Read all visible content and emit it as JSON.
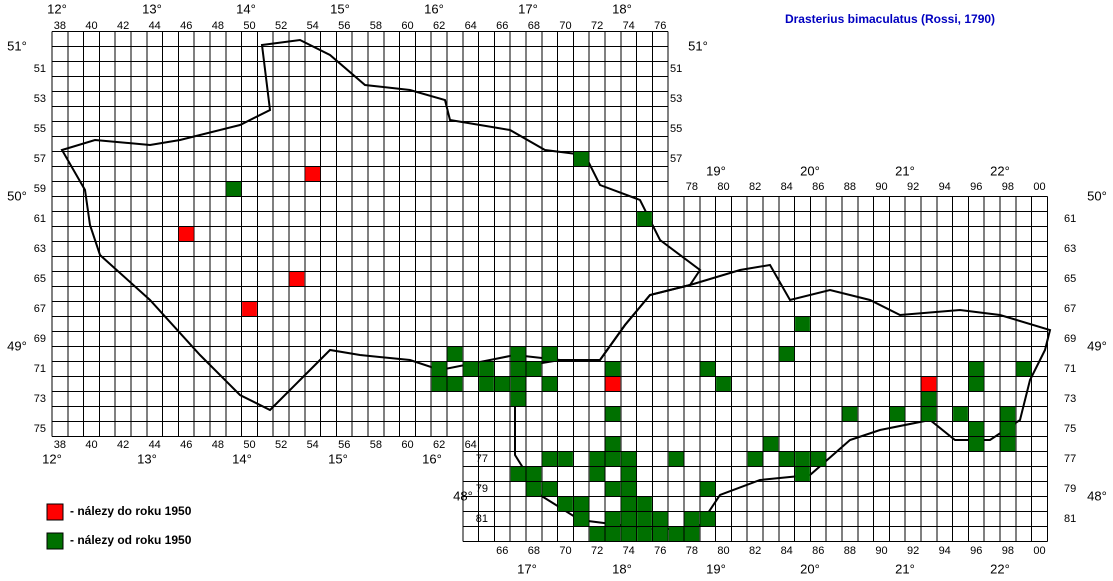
{
  "title": "Drasterius bimaculatus (Rossi, 1790)",
  "top_columns": [
    "38",
    "40",
    "42",
    "44",
    "46",
    "48",
    "50",
    "52",
    "54",
    "56",
    "58",
    "60",
    "62",
    "64",
    "66",
    "68",
    "70",
    "72",
    "74",
    "76"
  ],
  "bottom_columns_west": [
    "38",
    "40",
    "42",
    "44",
    "46",
    "48",
    "50",
    "52",
    "54",
    "56",
    "58",
    "60",
    "62",
    "64"
  ],
  "top_columns_east": [
    "78",
    "80",
    "82",
    "84",
    "86",
    "88",
    "90",
    "92",
    "94",
    "96",
    "98",
    "00"
  ],
  "bottom_columns_east": [
    "66",
    "68",
    "70",
    "72",
    "74",
    "76",
    "78",
    "80",
    "82",
    "84",
    "86",
    "88",
    "90",
    "92",
    "94",
    "96",
    "98",
    "00"
  ],
  "rows_right_west": [
    "51",
    "53",
    "55",
    "57"
  ],
  "rows_left_west": [
    "51",
    "53",
    "55",
    "57",
    "59",
    "61",
    "63",
    "65",
    "67",
    "69",
    "71",
    "73",
    "75"
  ],
  "rows_right_east": [
    "61",
    "63",
    "65",
    "67",
    "69",
    "71",
    "73",
    "75",
    "77",
    "79",
    "81"
  ],
  "rows_left_east": [
    "77",
    "79",
    "81"
  ],
  "longitudes_top": [
    "12°",
    "13°",
    "14°",
    "15°",
    "16°",
    "17°",
    "18°"
  ],
  "longitudes_top_east": [
    "19°",
    "20°",
    "21°",
    "22°"
  ],
  "longitudes_bottom_west": [
    "12°",
    "13°",
    "14°",
    "15°",
    "16°"
  ],
  "longitudes_bottom_east": [
    "17°",
    "18°",
    "19°",
    "20°",
    "21°",
    "22°"
  ],
  "latitudes": [
    "51°",
    "50°",
    "49°",
    "48°"
  ],
  "legend": {
    "before": "- nálezy do roku 1950",
    "since": "- nálezy od roku 1950"
  },
  "records": {
    "before_1950": [
      [
        54,
        58
      ],
      [
        46,
        62
      ],
      [
        53,
        65
      ],
      [
        50,
        67
      ],
      [
        73,
        72
      ],
      [
        93,
        72
      ]
    ],
    "since_1950": [
      [
        49,
        59
      ],
      [
        71,
        57
      ],
      [
        75,
        61
      ],
      [
        85,
        68
      ],
      [
        63,
        70
      ],
      [
        67,
        70
      ],
      [
        69,
        70
      ],
      [
        84,
        70
      ],
      [
        62,
        71
      ],
      [
        64,
        71
      ],
      [
        65,
        71
      ],
      [
        67,
        71
      ],
      [
        68,
        71
      ],
      [
        73,
        71
      ],
      [
        79,
        71
      ],
      [
        96,
        71
      ],
      [
        99,
        71
      ],
      [
        62,
        72
      ],
      [
        63,
        72
      ],
      [
        65,
        72
      ],
      [
        66,
        72
      ],
      [
        67,
        72
      ],
      [
        69,
        72
      ],
      [
        80,
        72
      ],
      [
        96,
        72
      ],
      [
        67,
        73
      ],
      [
        93,
        73
      ],
      [
        73,
        74
      ],
      [
        88,
        74
      ],
      [
        91,
        74
      ],
      [
        93,
        74
      ],
      [
        95,
        74
      ],
      [
        98,
        74
      ],
      [
        96,
        75
      ],
      [
        98,
        75
      ],
      [
        73,
        76
      ],
      [
        83,
        76
      ],
      [
        96,
        76
      ],
      [
        98,
        76
      ],
      [
        69,
        77
      ],
      [
        70,
        77
      ],
      [
        72,
        77
      ],
      [
        73,
        77
      ],
      [
        74,
        77
      ],
      [
        77,
        77
      ],
      [
        82,
        77
      ],
      [
        84,
        77
      ],
      [
        85,
        77
      ],
      [
        86,
        77
      ],
      [
        67,
        78
      ],
      [
        68,
        78
      ],
      [
        72,
        78
      ],
      [
        74,
        78
      ],
      [
        85,
        78
      ],
      [
        68,
        79
      ],
      [
        69,
        79
      ],
      [
        73,
        79
      ],
      [
        74,
        79
      ],
      [
        79,
        79
      ],
      [
        70,
        80
      ],
      [
        71,
        80
      ],
      [
        74,
        80
      ],
      [
        75,
        80
      ],
      [
        71,
        81
      ],
      [
        73,
        81
      ],
      [
        74,
        81
      ],
      [
        75,
        81
      ],
      [
        76,
        81
      ],
      [
        78,
        81
      ],
      [
        79,
        81
      ],
      [
        72,
        82
      ],
      [
        73,
        82
      ],
      [
        74,
        82
      ],
      [
        75,
        82
      ],
      [
        76,
        82
      ],
      [
        77,
        82
      ],
      [
        78,
        82
      ]
    ]
  }
}
